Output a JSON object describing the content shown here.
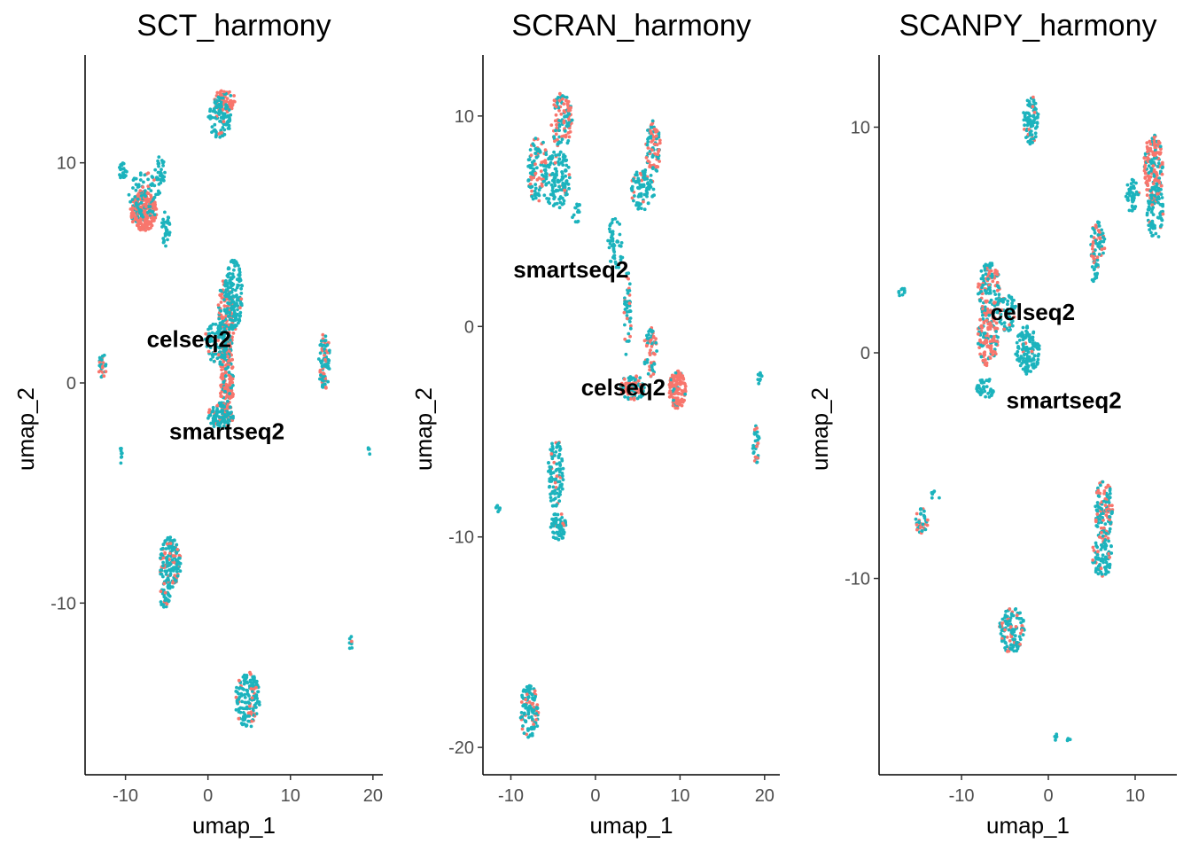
{
  "colors": {
    "celseq2": "#f8766d",
    "smartseq2": "#1cb3bd"
  },
  "chart_data": [
    {
      "type": "scatter",
      "title": "SCT_harmony",
      "xlabel": "umap_1",
      "ylabel": "umap_2",
      "xlim": [
        -14.9,
        21.2
      ],
      "ylim": [
        -17.8,
        14.9
      ],
      "xticks": [
        -10,
        0,
        10,
        20
      ],
      "yticks": [
        -10,
        0,
        10
      ],
      "tick_labels_x": [
        "-10",
        "0",
        "10",
        "20"
      ],
      "tick_labels_y": [
        "-10",
        "0",
        "10"
      ],
      "group_labels": [
        {
          "text": "celseq2",
          "x": -2.3,
          "y": 2.0
        },
        {
          "text": "smartseq2",
          "x": 2.3,
          "y": -2.2
        }
      ],
      "clusters": [
        {
          "cx": 2.0,
          "cy": 12.8,
          "rx": 1.4,
          "ry": 0.5,
          "red": 0.8,
          "n": 80
        },
        {
          "cx": 1.4,
          "cy": 12.0,
          "rx": 1.4,
          "ry": 0.9,
          "red": 0.05,
          "n": 90
        },
        {
          "cx": -10.3,
          "cy": 9.6,
          "rx": 0.5,
          "ry": 0.4,
          "red": 0,
          "n": 25
        },
        {
          "cx": -5.8,
          "cy": 9.6,
          "rx": 0.6,
          "ry": 0.7,
          "red": 0,
          "n": 30
        },
        {
          "cx": -7.8,
          "cy": 7.8,
          "rx": 1.6,
          "ry": 0.9,
          "red": 0.9,
          "n": 230
        },
        {
          "cx": -7.6,
          "cy": 8.6,
          "rx": 2.0,
          "ry": 1.0,
          "red": 0.2,
          "n": 80
        },
        {
          "cx": -5.1,
          "cy": 7.0,
          "rx": 0.5,
          "ry": 0.8,
          "red": 0,
          "n": 30
        },
        {
          "cx": 2.2,
          "cy": 3.0,
          "rx": 1.0,
          "ry": 1.8,
          "red": 0.5,
          "n": 160
        },
        {
          "cx": 3.1,
          "cy": 4.0,
          "rx": 1.1,
          "ry": 1.6,
          "red": 0.05,
          "n": 140
        },
        {
          "cx": 2.3,
          "cy": 0.0,
          "rx": 0.8,
          "ry": 2.0,
          "red": 0.75,
          "n": 200
        },
        {
          "cx": 1.0,
          "cy": 1.8,
          "rx": 1.4,
          "ry": 1.0,
          "red": 0.1,
          "n": 90
        },
        {
          "cx": 1.6,
          "cy": -1.5,
          "rx": 1.6,
          "ry": 0.6,
          "red": 0.15,
          "n": 90
        },
        {
          "cx": 14.1,
          "cy": 1.0,
          "rx": 0.7,
          "ry": 1.3,
          "red": 0.25,
          "n": 90
        },
        {
          "cx": -12.8,
          "cy": 0.8,
          "rx": 0.5,
          "ry": 0.6,
          "red": 0.3,
          "n": 28
        },
        {
          "cx": -10.5,
          "cy": -3.3,
          "rx": 0.2,
          "ry": 0.5,
          "red": 0,
          "n": 8
        },
        {
          "cx": 19.5,
          "cy": -3.1,
          "rx": 0.2,
          "ry": 0.2,
          "red": 0,
          "n": 4
        },
        {
          "cx": -4.6,
          "cy": -8.2,
          "rx": 1.3,
          "ry": 1.2,
          "red": 0.25,
          "n": 160
        },
        {
          "cx": -5.2,
          "cy": -9.7,
          "rx": 0.6,
          "ry": 0.6,
          "red": 0.15,
          "n": 30
        },
        {
          "cx": 4.8,
          "cy": -14.4,
          "rx": 1.5,
          "ry": 1.3,
          "red": 0.2,
          "n": 150
        },
        {
          "cx": 17.3,
          "cy": -11.8,
          "rx": 0.2,
          "ry": 0.4,
          "red": 0.2,
          "n": 8
        }
      ]
    },
    {
      "type": "scatter",
      "title": "SCRAN_harmony",
      "xlabel": "umap_1",
      "ylabel": "umap_2",
      "xlim": [
        -13.3,
        21.8
      ],
      "ylim": [
        -21.3,
        12.9
      ],
      "xticks": [
        -10,
        0,
        10,
        20
      ],
      "yticks": [
        -20,
        -10,
        0,
        10
      ],
      "tick_labels_x": [
        "-10",
        "0",
        "10",
        "20"
      ],
      "tick_labels_y": [
        "-20",
        "-10",
        "0",
        "10"
      ],
      "group_labels": [
        {
          "text": "smartseq2",
          "x": -2.9,
          "y": 2.7
        },
        {
          "text": "celseq2",
          "x": 3.3,
          "y": -2.9
        }
      ],
      "clusters": [
        {
          "cx": -4.0,
          "cy": 9.8,
          "rx": 1.3,
          "ry": 1.3,
          "red": 0.5,
          "n": 120
        },
        {
          "cx": -6.8,
          "cy": 7.4,
          "rx": 1.2,
          "ry": 1.6,
          "red": 0.3,
          "n": 110
        },
        {
          "cx": -4.6,
          "cy": 7.0,
          "rx": 1.6,
          "ry": 1.4,
          "red": 0.05,
          "n": 130
        },
        {
          "cx": -2.2,
          "cy": 5.3,
          "rx": 0.6,
          "ry": 0.6,
          "red": 0,
          "n": 15
        },
        {
          "cx": 6.8,
          "cy": 8.5,
          "rx": 0.9,
          "ry": 1.3,
          "red": 0.55,
          "n": 90
        },
        {
          "cx": 5.6,
          "cy": 6.5,
          "rx": 1.4,
          "ry": 1.0,
          "red": 0.1,
          "n": 90
        },
        {
          "cx": 2.4,
          "cy": 4.0,
          "rx": 1.0,
          "ry": 1.3,
          "red": 0.05,
          "n": 50
        },
        {
          "cx": 3.8,
          "cy": 0.5,
          "rx": 0.4,
          "ry": 2.2,
          "red": 0.3,
          "n": 45
        },
        {
          "cx": 6.5,
          "cy": -1.2,
          "rx": 0.8,
          "ry": 1.2,
          "red": 0.5,
          "n": 60
        },
        {
          "cx": 9.7,
          "cy": -3.0,
          "rx": 1.0,
          "ry": 0.9,
          "red": 0.9,
          "n": 130
        },
        {
          "cx": 4.4,
          "cy": -2.9,
          "rx": 1.5,
          "ry": 0.6,
          "red": 0.5,
          "n": 90
        },
        {
          "cx": -4.7,
          "cy": -7.0,
          "rx": 0.9,
          "ry": 1.7,
          "red": 0.15,
          "n": 100
        },
        {
          "cx": -4.4,
          "cy": -9.5,
          "rx": 0.9,
          "ry": 0.7,
          "red": 0.1,
          "n": 70
        },
        {
          "cx": -7.8,
          "cy": -18.3,
          "rx": 1.1,
          "ry": 1.3,
          "red": 0.2,
          "n": 120
        },
        {
          "cx": -11.5,
          "cy": -8.7,
          "rx": 0.3,
          "ry": 0.2,
          "red": 0,
          "n": 8
        },
        {
          "cx": 19.4,
          "cy": -2.4,
          "rx": 0.3,
          "ry": 0.4,
          "red": 0,
          "n": 10
        },
        {
          "cx": 19.0,
          "cy": -5.6,
          "rx": 0.4,
          "ry": 0.9,
          "red": 0.3,
          "n": 35
        }
      ]
    },
    {
      "type": "scatter",
      "title": "SCANPY_harmony",
      "xlabel": "umap_1",
      "ylabel": "umap_2",
      "xlim": [
        -19.5,
        14.8
      ],
      "ylim": [
        -18.7,
        13.2
      ],
      "xticks": [
        -10,
        0,
        10
      ],
      "yticks": [
        -10,
        0,
        10
      ],
      "tick_labels_x": [
        "-10",
        "0",
        "10"
      ],
      "tick_labels_y": [
        "-10",
        "0",
        "10"
      ],
      "group_labels": [
        {
          "text": "celseq2",
          "x": -1.8,
          "y": 1.8
        },
        {
          "text": "smartseq2",
          "x": 1.8,
          "y": -2.1
        }
      ],
      "clusters": [
        {
          "cx": -2.0,
          "cy": 10.3,
          "rx": 0.9,
          "ry": 1.1,
          "red": 0.05,
          "n": 80
        },
        {
          "cx": 12.1,
          "cy": 8.2,
          "rx": 1.1,
          "ry": 1.6,
          "red": 0.7,
          "n": 170
        },
        {
          "cx": 12.3,
          "cy": 6.2,
          "rx": 1.0,
          "ry": 1.2,
          "red": 0.1,
          "n": 80
        },
        {
          "cx": 9.7,
          "cy": 7.0,
          "rx": 0.8,
          "ry": 0.8,
          "red": 0.05,
          "n": 40
        },
        {
          "cx": 5.7,
          "cy": 4.8,
          "rx": 0.9,
          "ry": 1.0,
          "red": 0.45,
          "n": 70
        },
        {
          "cx": 5.4,
          "cy": 3.5,
          "rx": 0.4,
          "ry": 0.6,
          "red": 0.1,
          "n": 15
        },
        {
          "cx": -6.8,
          "cy": 2.8,
          "rx": 1.3,
          "ry": 1.2,
          "red": 0.35,
          "n": 130
        },
        {
          "cx": -7.0,
          "cy": 0.7,
          "rx": 1.2,
          "ry": 1.3,
          "red": 0.7,
          "n": 140
        },
        {
          "cx": -2.4,
          "cy": 0.1,
          "rx": 1.4,
          "ry": 1.1,
          "red": 0.02,
          "n": 130
        },
        {
          "cx": -4.8,
          "cy": 1.8,
          "rx": 1.1,
          "ry": 0.9,
          "red": 0.15,
          "n": 60
        },
        {
          "cx": -7.3,
          "cy": -1.6,
          "rx": 1.0,
          "ry": 0.5,
          "red": 0,
          "n": 40
        },
        {
          "cx": -16.9,
          "cy": 2.7,
          "rx": 0.5,
          "ry": 0.2,
          "red": 0,
          "n": 10
        },
        {
          "cx": -14.6,
          "cy": -7.5,
          "rx": 0.7,
          "ry": 0.6,
          "red": 0.35,
          "n": 40
        },
        {
          "cx": -13.0,
          "cy": -6.3,
          "rx": 0.6,
          "ry": 0.2,
          "red": 0,
          "n": 8
        },
        {
          "cx": 6.4,
          "cy": -7.0,
          "rx": 1.0,
          "ry": 1.4,
          "red": 0.35,
          "n": 120
        },
        {
          "cx": 6.2,
          "cy": -9.0,
          "rx": 1.2,
          "ry": 0.9,
          "red": 0.15,
          "n": 80
        },
        {
          "cx": -4.2,
          "cy": -12.3,
          "rx": 1.5,
          "ry": 1.0,
          "red": 0.25,
          "n": 120
        },
        {
          "cx": 0.7,
          "cy": -17.0,
          "rx": 0.3,
          "ry": 0.2,
          "red": 0,
          "n": 5
        },
        {
          "cx": 2.4,
          "cy": -17.2,
          "rx": 0.2,
          "ry": 0.2,
          "red": 0,
          "n": 4
        }
      ]
    }
  ]
}
